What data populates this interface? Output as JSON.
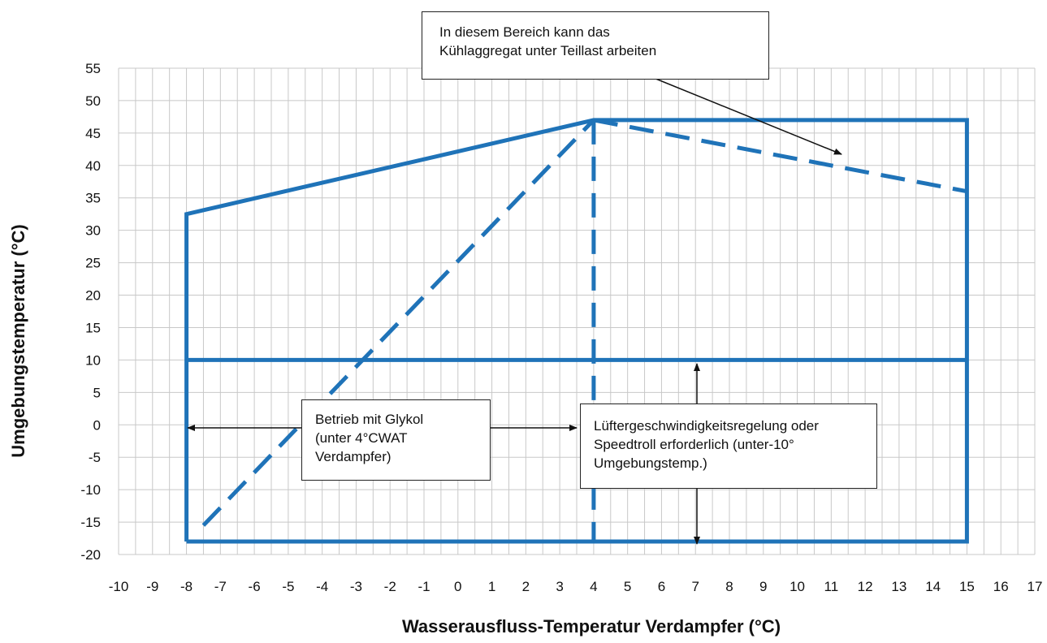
{
  "chart_data": {
    "type": "line",
    "xlabel": "Wasserausfluss-Temperatur Verdampfer (°C)",
    "ylabel": "Umgebungstemperatur (°C)",
    "xlim": [
      -10,
      17
    ],
    "ylim": [
      -20,
      55
    ],
    "x_ticks": [
      "-10",
      "-9",
      "-8",
      "-7",
      "-6",
      "-5",
      "-4",
      "-3",
      "-2",
      "-1",
      "0",
      "1",
      "2",
      "3",
      "4",
      "5",
      "6",
      "7",
      "8",
      "9",
      "10",
      "11",
      "12",
      "13",
      "14",
      "15",
      "16",
      "17"
    ],
    "y_ticks": [
      "55",
      "50",
      "45",
      "40",
      "35",
      "30",
      "25",
      "20",
      "15",
      "10",
      "5",
      "0",
      "-5",
      "-10",
      "-15",
      "-20"
    ],
    "grid": true,
    "line_color": "#1f73b8",
    "series": [
      {
        "style": "solid",
        "points": [
          [
            -8,
            -18
          ],
          [
            -8,
            32.5
          ],
          [
            4,
            47
          ],
          [
            15,
            47
          ],
          [
            15,
            -18
          ],
          [
            -8,
            -18
          ]
        ]
      },
      {
        "style": "solid",
        "points": [
          [
            -8,
            10
          ],
          [
            15,
            10
          ]
        ]
      },
      {
        "style": "dashed",
        "points": [
          [
            -7.5,
            -15.5
          ],
          [
            4,
            47
          ]
        ]
      },
      {
        "style": "dashed",
        "points": [
          [
            4,
            47
          ],
          [
            4,
            -18
          ]
        ]
      },
      {
        "style": "dashed",
        "points": [
          [
            4,
            47
          ],
          [
            11,
            40
          ],
          [
            15,
            36
          ]
        ]
      }
    ],
    "annotations": [
      {
        "lines": [
          "In diesem Bereich kann das",
          "Kühlaggregat unter Teillast arbeiten"
        ]
      },
      {
        "lines": [
          "Betrieb mit Glykol",
          "(unter 4°CWAT",
          "Verdampfer)"
        ]
      },
      {
        "lines": [
          "Lüftergeschwindigkeitsregelung oder",
          "Speedtroll erforderlich (unter-10°",
          "Umgebungstemp.)"
        ]
      }
    ]
  }
}
